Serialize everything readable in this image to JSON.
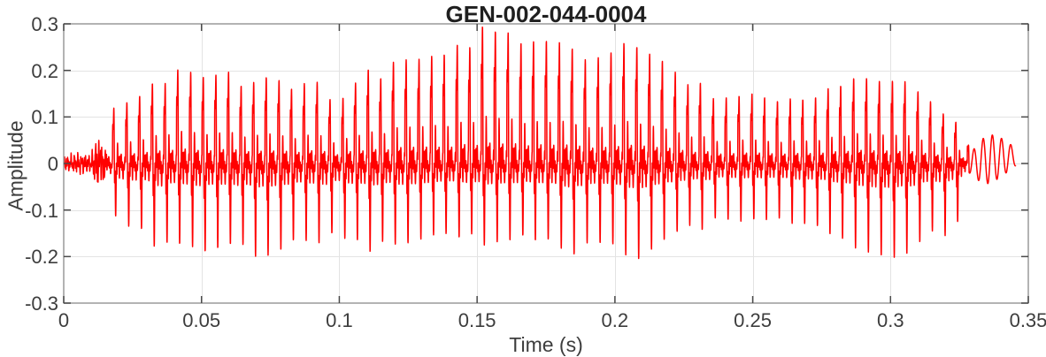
{
  "chart_data": {
    "type": "line",
    "title": "GEN-002-044-0004",
    "xlabel": "Time (s)",
    "ylabel": "Amplitude",
    "xlim": [
      0,
      0.35
    ],
    "ylim": [
      -0.3,
      0.3
    ],
    "xticks": [
      0,
      0.05,
      0.1,
      0.15,
      0.2,
      0.25,
      0.3,
      0.35
    ],
    "xtick_labels": [
      "0",
      "0.05",
      "0.1",
      "0.15",
      "0.2",
      "0.25",
      "0.3",
      "0.35"
    ],
    "yticks": [
      0.3,
      0.2,
      0.1,
      0,
      -0.1,
      -0.2,
      -0.3
    ],
    "ytick_labels": [
      "0.3",
      "0.2",
      "0.1",
      "0",
      "-0.1",
      "-0.2",
      "-0.3"
    ],
    "grid": true,
    "legend": null,
    "line_color": "#FF0000",
    "colors": {
      "grid": "#E3E3E3",
      "axis_box": "#9A9A9A",
      "tick_mark": "#4A4A4A",
      "tick_text": "#3D3D3D",
      "title_text": "#1F1F1F",
      "background": "#FFFFFF"
    },
    "signal": {
      "kind": "speech_waveform_envelope",
      "description": "single-channel speech waveform, values estimated from plot",
      "duration_s": 0.3455,
      "f0_hz": 216,
      "voiced_start_s": 0.0132,
      "voiced_end_s": 0.3285,
      "envelope_dt_s": 0.005,
      "envelope_upper": [
        0.015,
        0.022,
        0.018,
        0.105,
        0.135,
        0.15,
        0.175,
        0.185,
        0.215,
        0.22,
        0.2,
        0.19,
        0.2,
        0.19,
        0.195,
        0.19,
        0.175,
        0.165,
        0.18,
        0.17,
        0.14,
        0.2,
        0.21,
        0.2,
        0.22,
        0.235,
        0.25,
        0.27,
        0.255,
        0.28,
        0.3,
        0.295,
        0.285,
        0.28,
        0.265,
        0.27,
        0.26,
        0.265,
        0.26,
        0.25,
        0.255,
        0.26,
        0.255,
        0.24,
        0.23,
        0.205,
        0.18,
        0.165,
        0.15,
        0.145,
        0.15,
        0.145,
        0.135,
        0.14,
        0.15,
        0.16,
        0.17,
        0.18,
        0.19,
        0.19,
        0.19,
        0.18,
        0.165,
        0.14,
        0.115,
        0.09,
        0.075,
        0.065,
        0.055,
        0.035
      ],
      "envelope_lower": [
        -0.015,
        -0.022,
        -0.018,
        -0.08,
        -0.13,
        -0.155,
        -0.16,
        -0.205,
        -0.185,
        -0.19,
        -0.21,
        -0.185,
        -0.175,
        -0.2,
        -0.225,
        -0.2,
        -0.185,
        -0.17,
        -0.165,
        -0.18,
        -0.17,
        -0.19,
        -0.2,
        -0.185,
        -0.175,
        -0.18,
        -0.18,
        -0.175,
        -0.165,
        -0.17,
        -0.18,
        -0.175,
        -0.17,
        -0.165,
        -0.17,
        -0.165,
        -0.18,
        -0.21,
        -0.2,
        -0.19,
        -0.185,
        -0.2,
        -0.215,
        -0.185,
        -0.17,
        -0.16,
        -0.15,
        -0.14,
        -0.13,
        -0.125,
        -0.12,
        -0.125,
        -0.12,
        -0.13,
        -0.14,
        -0.15,
        -0.16,
        -0.175,
        -0.19,
        -0.21,
        -0.22,
        -0.2,
        -0.185,
        -0.155,
        -0.175,
        -0.13,
        -0.07,
        -0.045,
        -0.03,
        -0.005
      ]
    }
  }
}
